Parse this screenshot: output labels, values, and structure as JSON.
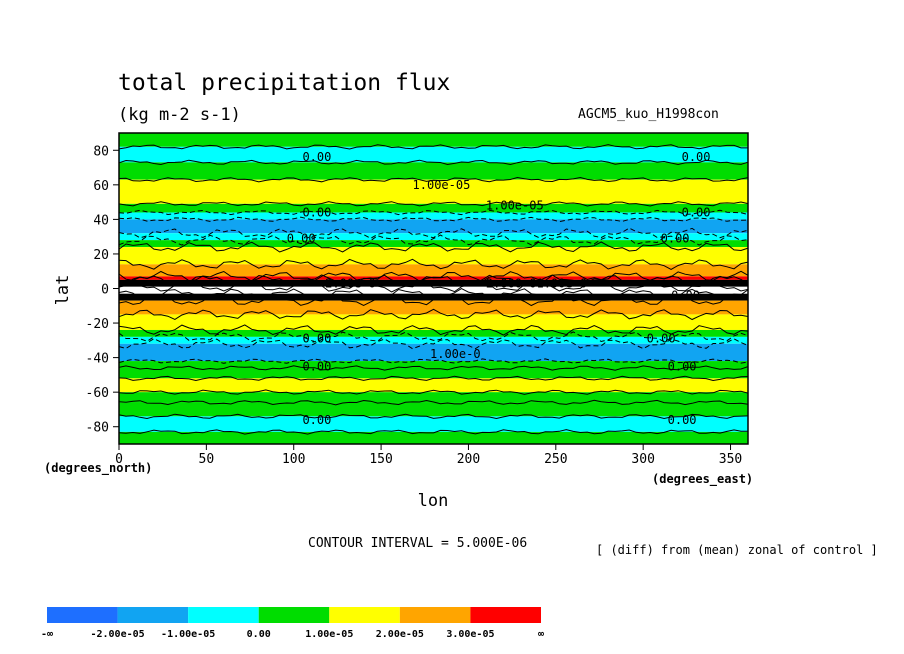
{
  "chart_data": {
    "type": "heatmap",
    "title": "total precipitation flux",
    "subtitle": "(kg m-2 s-1)",
    "experiment": "AGCM5_kuo_H1998con",
    "xlabel": "lon",
    "ylabel": "lat",
    "x_unit_label": "(degrees_east)",
    "y_unit_label": "(degrees_north)",
    "xlim": [
      0,
      360
    ],
    "ylim": [
      -90,
      90
    ],
    "x_ticks": [
      0,
      50,
      100,
      150,
      200,
      250,
      300,
      350
    ],
    "y_ticks": [
      80,
      60,
      40,
      20,
      0,
      -20,
      -40,
      -60,
      -80
    ],
    "contour_interval_text": "CONTOUR INTERVAL = 5.000E-06",
    "note": "[ (diff) from (mean) zonal of control ]",
    "colorbar": {
      "levels": [
        {
          "label": "-∞",
          "value": null
        },
        {
          "label": "-2.00e-05",
          "value": -2e-05
        },
        {
          "label": "-1.00e-05",
          "value": -1e-05
        },
        {
          "label": "0.00",
          "value": 0.0
        },
        {
          "label": "1.00e-05",
          "value": 1e-05
        },
        {
          "label": "2.00e-05",
          "value": 2e-05
        },
        {
          "label": "3.00e-05",
          "value": 3e-05
        },
        {
          "label": "∞",
          "value": null
        }
      ],
      "colors": [
        "#1e6fff",
        "#11a4f2",
        "#00ffff",
        "#00dd00",
        "#ffff00",
        "#ffa500",
        "#ff0000"
      ]
    },
    "zonal_bands": [
      {
        "lat_top": 90,
        "lat_bottom": 82,
        "color": "#00dd00"
      },
      {
        "lat_top": 82,
        "lat_bottom": 73,
        "color": "#00ffff"
      },
      {
        "lat_top": 73,
        "lat_bottom": 63,
        "color": "#00dd00"
      },
      {
        "lat_top": 63,
        "lat_bottom": 49,
        "color": "#ffff00"
      },
      {
        "lat_top": 49,
        "lat_bottom": 44,
        "color": "#00dd00"
      },
      {
        "lat_top": 44,
        "lat_bottom": 40,
        "color": "#00ffff"
      },
      {
        "lat_top": 40,
        "lat_bottom": 32,
        "color": "#11a4f2"
      },
      {
        "lat_top": 32,
        "lat_bottom": 28,
        "color": "#00ffff"
      },
      {
        "lat_top": 28,
        "lat_bottom": 24,
        "color": "#00dd00"
      },
      {
        "lat_top": 24,
        "lat_bottom": 14,
        "color": "#ffff00"
      },
      {
        "lat_top": 14,
        "lat_bottom": 7,
        "color": "#ffa500"
      },
      {
        "lat_top": 7,
        "lat_bottom": 5,
        "color": "#ff0000"
      },
      {
        "lat_top": 5,
        "lat_bottom": 1,
        "color": "#000000"
      },
      {
        "lat_top": 1,
        "lat_bottom": -3,
        "color": "#ffffff"
      },
      {
        "lat_top": -3,
        "lat_bottom": -7,
        "color": "#000000"
      },
      {
        "lat_top": -7,
        "lat_bottom": -15,
        "color": "#ffa500"
      },
      {
        "lat_top": -15,
        "lat_bottom": -24,
        "color": "#ffff00"
      },
      {
        "lat_top": -24,
        "lat_bottom": -28,
        "color": "#00dd00"
      },
      {
        "lat_top": -28,
        "lat_bottom": -32,
        "color": "#00ffff"
      },
      {
        "lat_top": -32,
        "lat_bottom": -42,
        "color": "#11a4f2"
      },
      {
        "lat_top": -42,
        "lat_bottom": -46,
        "color": "#00dd00"
      },
      {
        "lat_top": -46,
        "lat_bottom": -52,
        "color": "#00dd00"
      },
      {
        "lat_top": -52,
        "lat_bottom": -60,
        "color": "#ffff00"
      },
      {
        "lat_top": -60,
        "lat_bottom": -66,
        "color": "#00dd00"
      },
      {
        "lat_top": -66,
        "lat_bottom": -74,
        "color": "#00dd00"
      },
      {
        "lat_top": -74,
        "lat_bottom": -83,
        "color": "#00ffff"
      },
      {
        "lat_top": -83,
        "lat_bottom": -90,
        "color": "#00dd00"
      }
    ],
    "contour_labels": [
      {
        "text": "0.00",
        "lon": 105,
        "lat": 76
      },
      {
        "text": "0.00",
        "lon": 322,
        "lat": 76
      },
      {
        "text": "1.00e-05",
        "lon": 168,
        "lat": 60
      },
      {
        "text": "1.00e-05",
        "lon": 210,
        "lat": 48
      },
      {
        "text": "0.00",
        "lon": 105,
        "lat": 44
      },
      {
        "text": "0.00",
        "lon": 322,
        "lat": 44
      },
      {
        "text": "0.00",
        "lon": 96,
        "lat": 29
      },
      {
        "text": "0.00",
        "lon": 310,
        "lat": 29
      },
      {
        "text": "2.00e-0",
        "lon": 118,
        "lat": 3
      },
      {
        "text": "2.000-01.00e-0",
        "lon": 210,
        "lat": 3
      },
      {
        "text": "0.00",
        "lon": 316,
        "lat": -4
      },
      {
        "text": "0.00",
        "lon": 105,
        "lat": -29
      },
      {
        "text": "0.00",
        "lon": 302,
        "lat": -29
      },
      {
        "text": "1.00e-0",
        "lon": 178,
        "lat": -38
      },
      {
        "text": "0.00",
        "lon": 105,
        "lat": -45
      },
      {
        "text": "0.00",
        "lon": 314,
        "lat": -45
      },
      {
        "text": "0.00",
        "lon": 105,
        "lat": -76
      },
      {
        "text": "0.00",
        "lon": 314,
        "lat": -76
      }
    ]
  }
}
